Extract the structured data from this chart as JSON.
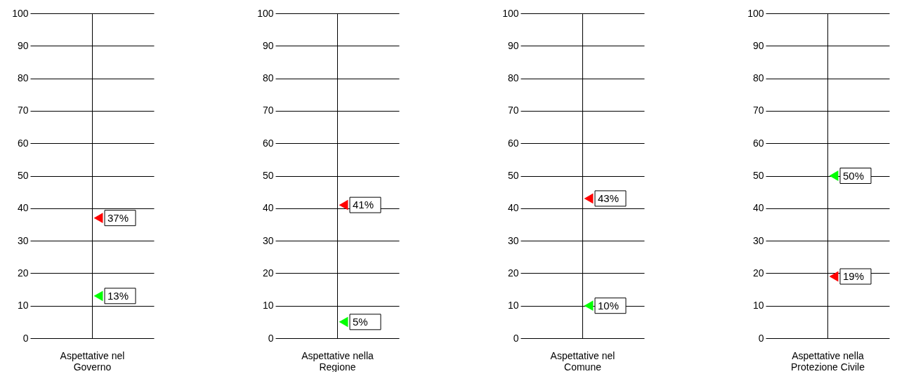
{
  "chart_data": [
    {
      "type": "scatter",
      "xlabel": "Aspettative nel Governo",
      "categories": [
        null
      ],
      "grid": true,
      "ylim": [
        0,
        100
      ],
      "yticks": [
        0,
        10,
        20,
        30,
        40,
        50,
        60,
        70,
        80,
        90,
        100
      ],
      "marker": "triangle",
      "series": [
        {
          "color": "#ff0000",
          "values": [
            37
          ],
          "value_labels": [
            "37%"
          ]
        },
        {
          "color": "#00ff00",
          "values": [
            13
          ],
          "value_labels": [
            "13%"
          ]
        }
      ]
    },
    {
      "type": "scatter",
      "xlabel": "Aspettative nella Regione",
      "categories": [
        null
      ],
      "grid": true,
      "ylim": [
        0,
        100
      ],
      "yticks": [
        0,
        10,
        20,
        30,
        40,
        50,
        60,
        70,
        80,
        90,
        100
      ],
      "marker": "triangle",
      "series": [
        {
          "color": "#ff0000",
          "values": [
            41
          ],
          "value_labels": [
            "41%"
          ]
        },
        {
          "color": "#00ff00",
          "values": [
            5
          ],
          "value_labels": [
            "5%"
          ]
        }
      ]
    },
    {
      "type": "scatter",
      "xlabel": "Aspettative nel Comune",
      "categories": [
        null
      ],
      "grid": true,
      "ylim": [
        0,
        100
      ],
      "yticks": [
        0,
        10,
        20,
        30,
        40,
        50,
        60,
        70,
        80,
        90,
        100
      ],
      "marker": "triangle",
      "series": [
        {
          "color": "#ff0000",
          "values": [
            43
          ],
          "value_labels": [
            "43%"
          ]
        },
        {
          "color": "#00ff00",
          "values": [
            10
          ],
          "value_labels": [
            "10%"
          ]
        }
      ]
    },
    {
      "type": "scatter",
      "xlabel": "Aspettative nella Protezione Civile",
      "categories": [
        null
      ],
      "grid": true,
      "ylim": [
        0,
        100
      ],
      "yticks": [
        0,
        10,
        20,
        30,
        40,
        50,
        60,
        70,
        80,
        90,
        100
      ],
      "marker": "triangle",
      "series": [
        {
          "color": "#00ff00",
          "values": [
            50
          ],
          "value_labels": [
            "50%"
          ]
        },
        {
          "color": "#ff0000",
          "values": [
            19
          ],
          "value_labels": [
            "19%"
          ]
        }
      ]
    }
  ]
}
